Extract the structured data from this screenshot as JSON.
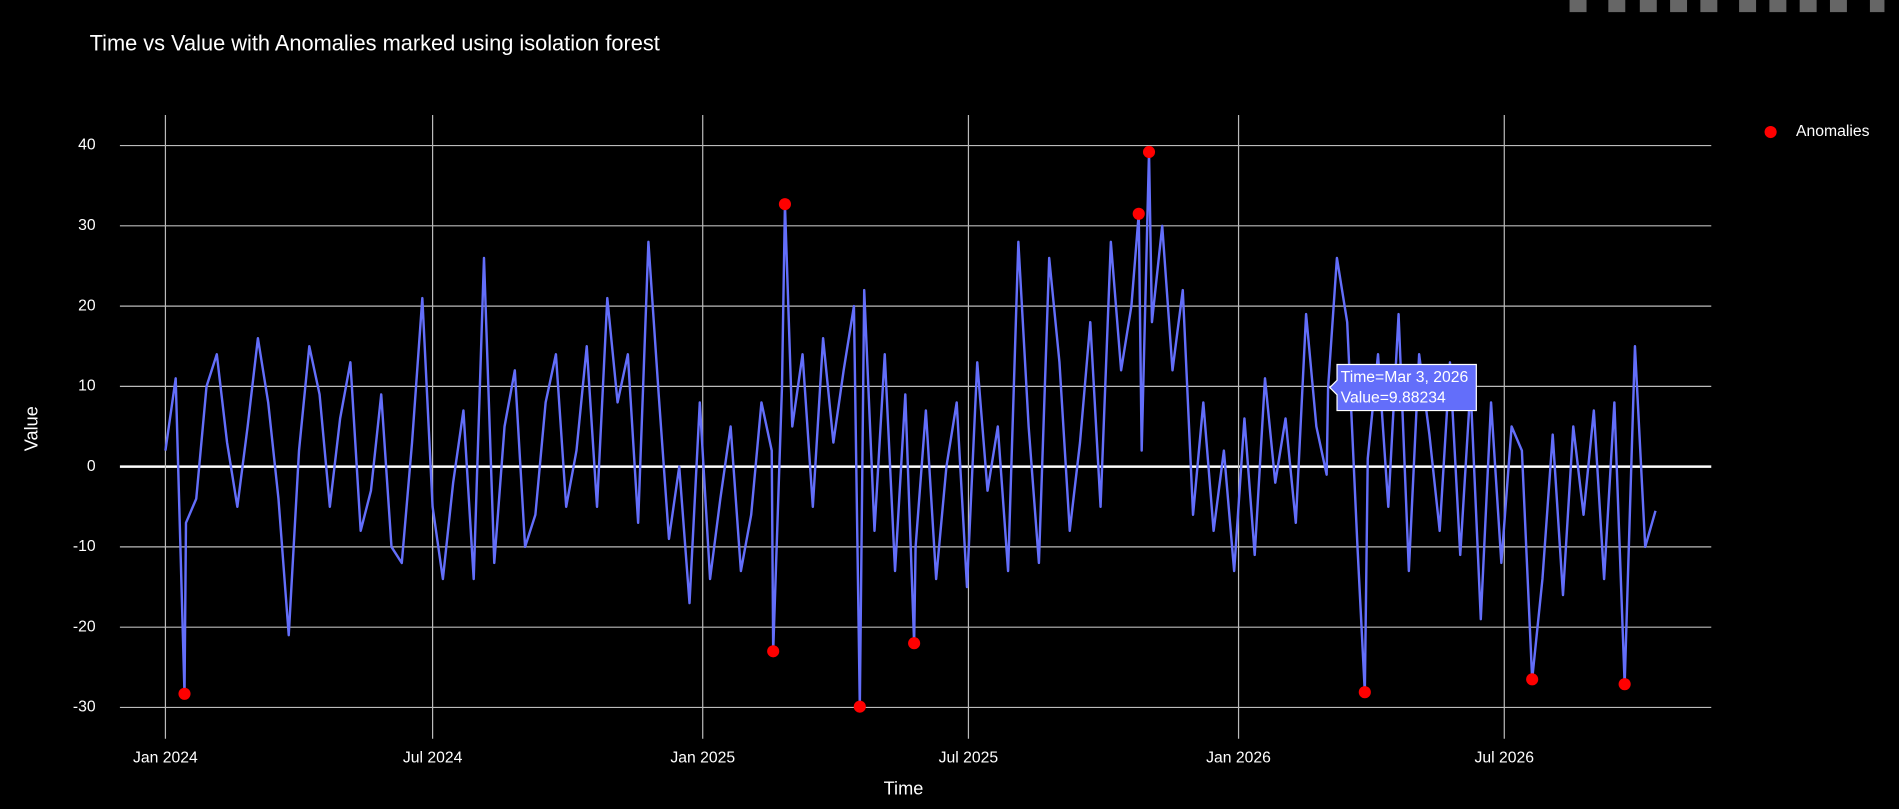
{
  "chart_data": {
    "type": "line",
    "title": "Time vs Value with Anomalies marked using isolation forest",
    "x_label": "Time",
    "y_label": "Value",
    "xlim": [
      "2023-12-01",
      "2026-11-19"
    ],
    "ylim": [
      -33.9,
      43.8
    ],
    "xticks": [
      {
        "value": "2024-01-01",
        "label": "Jan 2024"
      },
      {
        "value": "2024-07-01",
        "label": "Jul 2024"
      },
      {
        "value": "2025-01-01",
        "label": "Jan 2025"
      },
      {
        "value": "2025-07-01",
        "label": "Jul 2025"
      },
      {
        "value": "2026-01-01",
        "label": "Jan 2026"
      },
      {
        "value": "2026-07-01",
        "label": "Jul 2026"
      }
    ],
    "yticks": [
      -30,
      -20,
      -10,
      0,
      10,
      20,
      30,
      40
    ],
    "grid": true,
    "legend": "top-right",
    "hover_label": [
      "Time=Mar 3, 2026",
      "Value=9.88234"
    ],
    "series": [
      {
        "color": "#636efa",
        "mode": "lines",
        "x": [
          "2024-01-01",
          "2024-01-08",
          "2024-01-14",
          "2024-01-15",
          "2024-01-22",
          "2024-01-29",
          "2024-02-05",
          "2024-02-12",
          "2024-02-19",
          "2024-02-26",
          "2024-03-04",
          "2024-03-11",
          "2024-03-18",
          "2024-03-25",
          "2024-04-01",
          "2024-04-08",
          "2024-04-15",
          "2024-04-22",
          "2024-04-29",
          "2024-05-06",
          "2024-05-13",
          "2024-05-20",
          "2024-05-27",
          "2024-06-03",
          "2024-06-10",
          "2024-06-17",
          "2024-06-24",
          "2024-07-01",
          "2024-07-08",
          "2024-07-15",
          "2024-07-22",
          "2024-07-29",
          "2024-08-05",
          "2024-08-12",
          "2024-08-19",
          "2024-08-26",
          "2024-09-02",
          "2024-09-09",
          "2024-09-16",
          "2024-09-23",
          "2024-09-30",
          "2024-10-07",
          "2024-10-14",
          "2024-10-21",
          "2024-10-28",
          "2024-11-04",
          "2024-11-11",
          "2024-11-18",
          "2024-11-25",
          "2024-12-02",
          "2024-12-09",
          "2024-12-16",
          "2024-12-23",
          "2024-12-30",
          "2025-01-06",
          "2025-01-13",
          "2025-01-20",
          "2025-01-27",
          "2025-02-03",
          "2025-02-10",
          "2025-02-17",
          "2025-02-18",
          "2025-02-24",
          "2025-02-26",
          "2025-03-03",
          "2025-03-10",
          "2025-03-17",
          "2025-03-24",
          "2025-03-31",
          "2025-04-07",
          "2025-04-14",
          "2025-04-18",
          "2025-04-21",
          "2025-04-28",
          "2025-05-05",
          "2025-05-12",
          "2025-05-19",
          "2025-05-25",
          "2025-05-26",
          "2025-06-02",
          "2025-06-09",
          "2025-06-16",
          "2025-06-23",
          "2025-06-30",
          "2025-07-07",
          "2025-07-14",
          "2025-07-21",
          "2025-07-28",
          "2025-08-04",
          "2025-08-11",
          "2025-08-18",
          "2025-08-25",
          "2025-09-01",
          "2025-09-08",
          "2025-09-15",
          "2025-09-22",
          "2025-09-29",
          "2025-10-06",
          "2025-10-13",
          "2025-10-20",
          "2025-10-25",
          "2025-10-27",
          "2025-11-01",
          "2025-11-03",
          "2025-11-10",
          "2025-11-17",
          "2025-11-24",
          "2025-12-01",
          "2025-12-08",
          "2025-12-15",
          "2025-12-22",
          "2025-12-29",
          "2026-01-05",
          "2026-01-12",
          "2026-01-19",
          "2026-01-26",
          "2026-02-02",
          "2026-02-09",
          "2026-02-16",
          "2026-02-23",
          "2026-03-02",
          "2026-03-03",
          "2026-03-09",
          "2026-03-16",
          "2026-03-23",
          "2026-03-28",
          "2026-03-30",
          "2026-04-06",
          "2026-04-13",
          "2026-04-20",
          "2026-04-27",
          "2026-05-04",
          "2026-05-11",
          "2026-05-18",
          "2026-05-25",
          "2026-06-01",
          "2026-06-08",
          "2026-06-15",
          "2026-06-22",
          "2026-06-29",
          "2026-07-06",
          "2026-07-13",
          "2026-07-20",
          "2026-07-27",
          "2026-08-03",
          "2026-08-10",
          "2026-08-17",
          "2026-08-24",
          "2026-08-31",
          "2026-09-07",
          "2026-09-14",
          "2026-09-21",
          "2026-09-28",
          "2026-10-05",
          "2026-10-12"
        ],
        "values": [
          2,
          11,
          -28.3,
          -7,
          -4,
          10,
          14,
          3,
          -5,
          5,
          16,
          8,
          -4,
          -21,
          2,
          15,
          9,
          -5,
          6,
          13,
          -8,
          -3,
          9,
          -10,
          -12,
          3,
          21,
          -5,
          -14,
          -2,
          7,
          -14,
          26,
          -12,
          5,
          12,
          -10,
          -6,
          8,
          14,
          -5,
          2,
          15,
          -5,
          21,
          8,
          14,
          -7,
          28,
          9,
          -9,
          0,
          -17,
          8,
          -14,
          -4,
          5,
          -13,
          -6,
          8,
          2,
          -23,
          10,
          32.7,
          5,
          14,
          -5,
          16,
          3,
          12,
          20,
          -29.9,
          22,
          -8,
          14,
          -13,
          9,
          -22,
          -10,
          7,
          -14,
          0,
          8,
          -15,
          13,
          -3,
          5,
          -13,
          28,
          5,
          -12,
          26,
          13,
          -8,
          3,
          18,
          -5,
          28,
          12,
          20,
          31.5,
          2,
          39.2,
          18,
          30,
          12,
          22,
          -6,
          8,
          -8,
          2,
          -13,
          6,
          -11,
          11,
          -2,
          6,
          -7,
          19,
          5,
          -1,
          9.88234,
          26,
          18,
          -10,
          -28.1,
          1,
          14,
          -5,
          19,
          -13,
          14,
          4,
          -8,
          13,
          -11,
          10,
          -19,
          8,
          -12,
          5,
          2,
          -26.5,
          -14,
          4,
          -16,
          5,
          -6,
          7,
          -14,
          8,
          -27.1,
          15,
          -10,
          -5.5
        ]
      },
      {
        "name": "Anomalies",
        "color": "#ff0000",
        "mode": "markers",
        "x": [
          "2024-01-14",
          "2025-02-18",
          "2025-02-26",
          "2025-04-18",
          "2025-05-25",
          "2025-10-25",
          "2025-11-01",
          "2026-03-28",
          "2026-07-20",
          "2026-09-21"
        ],
        "values": [
          -28.3,
          -23,
          32.7,
          -29.9,
          -22,
          31.5,
          39.2,
          -28.1,
          -26.5,
          -27.1
        ]
      }
    ]
  }
}
